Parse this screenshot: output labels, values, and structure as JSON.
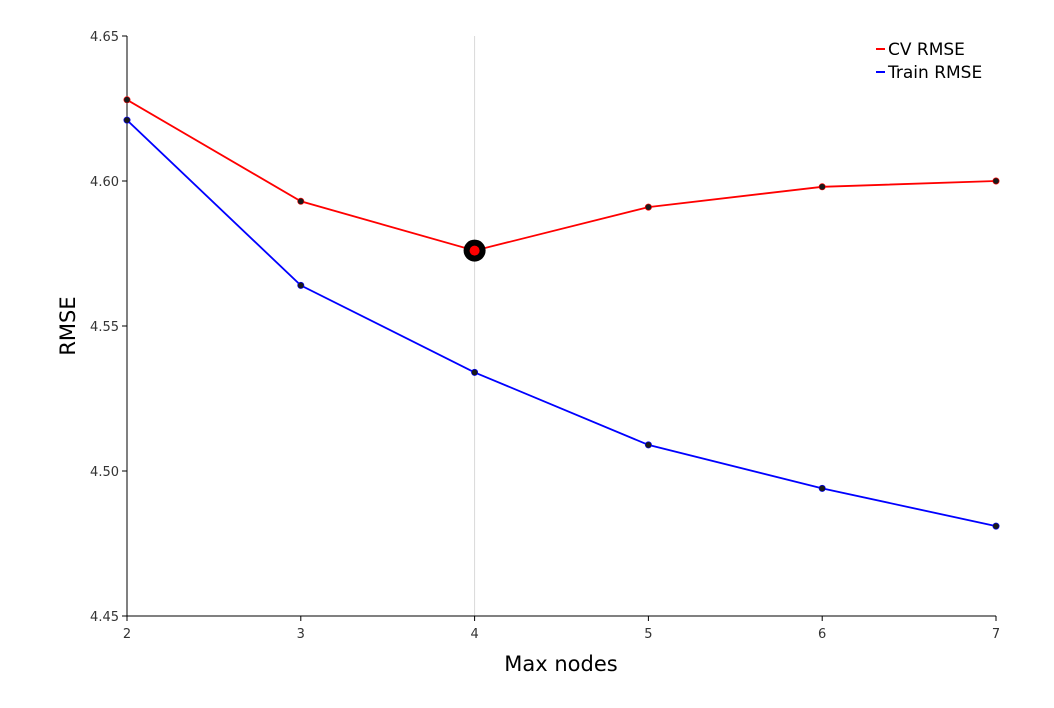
{
  "chart_data": {
    "type": "line",
    "title": "",
    "xlabel": "Max nodes",
    "ylabel": "RMSE",
    "x": [
      2,
      3,
      4,
      5,
      6,
      7
    ],
    "xlim": [
      2,
      7
    ],
    "ylim": [
      4.45,
      4.65
    ],
    "xticks": [
      "2",
      "3",
      "4",
      "5",
      "6",
      "7"
    ],
    "yticks": [
      "4.45",
      "4.50",
      "4.55",
      "4.60",
      "4.65"
    ],
    "grid": false,
    "legend_position": "top-right",
    "highlight": {
      "x": 4,
      "y": 4.576,
      "series": "CV RMSE"
    },
    "series": [
      {
        "name": "CV RMSE",
        "color": "#ff0000",
        "values": [
          4.628,
          4.593,
          4.576,
          4.591,
          4.598,
          4.6
        ]
      },
      {
        "name": "Train RMSE",
        "color": "#0000ff",
        "values": [
          4.621,
          4.564,
          4.534,
          4.509,
          4.494,
          4.481
        ]
      }
    ],
    "marker_color": "#1a1a1a"
  }
}
